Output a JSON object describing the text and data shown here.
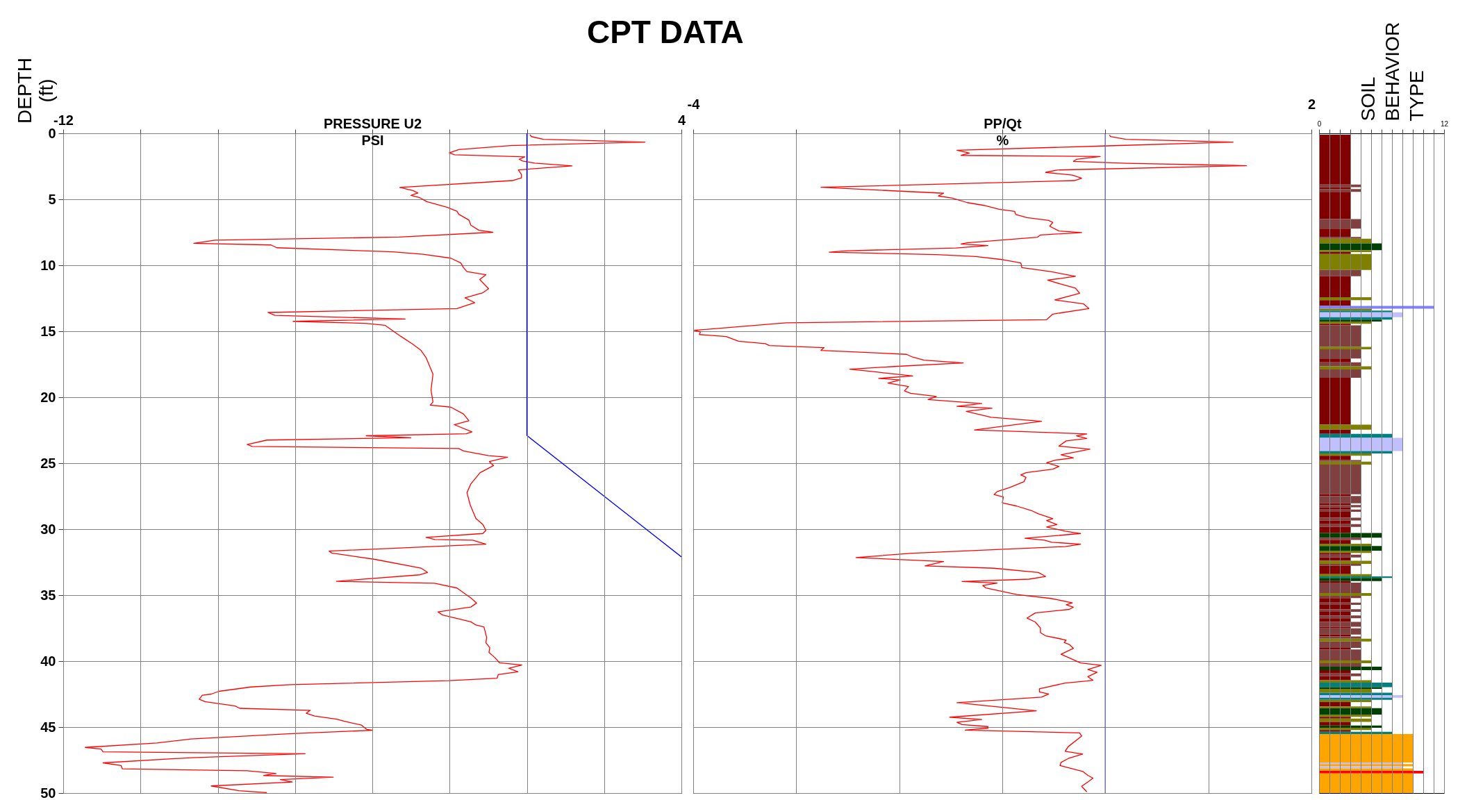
{
  "chart_data": [
    {
      "type": "line",
      "title": "CPT DATA",
      "xlabel": "PRESSURE U2\nPSI",
      "ylabel": "DEPTH\n(ft)",
      "xlim": [
        -12,
        4
      ],
      "xticks": [
        -12,
        {
          "value": -10,
          "label": null
        },
        {
          "value": -8,
          "label": null
        },
        {
          "value": -6,
          "label": null
        },
        {
          "value": -4,
          "label": null
        },
        {
          "value": -2,
          "label": null
        },
        {
          "value": 0,
          "label": null
        },
        {
          "value": 2,
          "label": null
        },
        4
      ],
      "ylim": [
        50,
        0
      ],
      "yticks": [
        0,
        5,
        10,
        15,
        20,
        25,
        30,
        35,
        40,
        45,
        50
      ],
      "grid": true,
      "series": [
        {
          "color": "#ff0000",
          "x": [
            0.08,
            0.12,
            0.43,
            3.06,
            -0.42,
            -1.76,
            -2.01,
            -1.87,
            -0.05,
            -0.2,
            -0.11,
            0.2,
            1.17,
            -0.22,
            -0.14,
            -0.14,
            -0.37,
            -3.29,
            -2.95,
            -2.82,
            -3.0,
            -2.77,
            -2.59,
            -2.07,
            -1.81,
            -1.76,
            -1.5,
            -1.45,
            -1.24,
            -0.88,
            -3.31,
            -8.07,
            -8.62,
            -6.62,
            -6.47,
            -3.47,
            -2.69,
            -1.97,
            -1.71,
            -1.64,
            -1.55,
            -1.06,
            -1.22,
            -0.99,
            -1.14,
            -1.6,
            -1.35,
            -1.81,
            -6.7,
            -6.52,
            -3.15,
            -6.05,
            -4.19,
            -3.67,
            -3.26,
            -2.95,
            -2.74,
            -2.61,
            -2.43,
            -2.48,
            -2.43,
            -2.5,
            -1.97,
            -1.64,
            -1.5,
            -1.88,
            -1.42,
            -1.57,
            -4.16,
            -3.0,
            -6.73,
            -7.24,
            -7.11,
            -1.76,
            -1.64,
            -0.99,
            -0.5,
            -0.97,
            -0.86,
            -1.21,
            -1.45,
            -1.55,
            -1.47,
            -1.32,
            -1.14,
            -1.06,
            -1.14,
            -2.61,
            -2.38,
            -1.4,
            -1.06,
            -5.12,
            -5.05,
            -3.93,
            -2.74,
            -2.57,
            -2.77,
            -4.93,
            -2.39,
            -1.81,
            -1.45,
            -1.3,
            -1.45,
            -2.3,
            -2.18,
            -1.45,
            -1.32,
            -1.11,
            -1.04,
            -1.06,
            -0.96,
            -0.98,
            -0.83,
            -0.71,
            -0.13,
            -0.47,
            -0.23,
            -0.74,
            -0.77,
            -2.02,
            -6.11,
            -7.14,
            -7.97,
            -8.17,
            -8.4,
            -8.48,
            -8.33,
            -7.55,
            -7.43,
            -5.61,
            -5.71,
            -5.49,
            -4.92,
            -4.74,
            -4.28,
            -4.14,
            -3.99,
            -6.16,
            -8.69,
            -9.57,
            -11.43,
            -11.02,
            -10.97,
            -5.74,
            -8.69,
            -10.97,
            -10.5,
            -10.47,
            -7.24,
            -6.49,
            -6.81,
            -5.01,
            -6.38,
            -6.07,
            -8.17,
            -7.45,
            -6.73
          ],
          "values": [
            0.1,
            0.25,
            0.45,
            0.66,
            0.93,
            1.23,
            1.48,
            1.63,
            1.78,
            1.96,
            2.1,
            2.26,
            2.47,
            2.77,
            3.13,
            3.37,
            3.58,
            4.1,
            4.34,
            4.52,
            4.7,
            4.88,
            5.18,
            5.6,
            5.9,
            6.14,
            6.57,
            6.96,
            7.35,
            7.5,
            7.86,
            8.1,
            8.34,
            8.46,
            8.67,
            8.98,
            9.16,
            9.46,
            9.82,
            10.18,
            10.48,
            10.72,
            11.08,
            11.78,
            12.08,
            12.47,
            12.83,
            13.28,
            13.58,
            13.8,
            14.07,
            14.25,
            14.4,
            14.55,
            15.39,
            15.99,
            16.45,
            16.99,
            18.25,
            19.46,
            20.36,
            20.6,
            20.75,
            21.27,
            21.78,
            22.08,
            22.62,
            22.77,
            22.92,
            23.07,
            23.25,
            23.58,
            23.73,
            23.89,
            24.07,
            24.43,
            24.55,
            24.88,
            25.18,
            25.72,
            26.57,
            27.23,
            28.13,
            29.19,
            29.64,
            30.09,
            30.33,
            30.63,
            30.78,
            30.84,
            31.14,
            31.66,
            31.81,
            32.29,
            32.95,
            33.28,
            33.46,
            33.95,
            34.1,
            34.46,
            35.21,
            35.6,
            35.9,
            36.27,
            36.51,
            37.02,
            37.26,
            37.41,
            38.22,
            38.61,
            38.98,
            39.34,
            39.73,
            40.12,
            40.3,
            40.54,
            40.81,
            41.02,
            41.3,
            41.48,
            41.78,
            41.96,
            42.29,
            42.5,
            42.59,
            42.89,
            43.07,
            43.4,
            43.58,
            43.73,
            43.95,
            44.16,
            44.4,
            44.55,
            44.85,
            45.18,
            45.24,
            45.51,
            45.9,
            46.2,
            46.54,
            46.66,
            46.87,
            47.02,
            47.32,
            47.71,
            47.92,
            48.16,
            48.31,
            48.52,
            48.67,
            48.8,
            48.98,
            49.16,
            49.46,
            49.82,
            49.97
          ]
        },
        {
          "color": "#0000ff",
          "x": [
            0,
            0,
            4
          ],
          "values": [
            0,
            22.9,
            32.1
          ]
        }
      ]
    },
    {
      "type": "line",
      "xlabel": "PP/Qt\n%",
      "xlim": [
        -4,
        2
      ],
      "xticks": [
        -4,
        {
          "value": -3,
          "label": null
        },
        {
          "value": -2,
          "label": null
        },
        {
          "value": -1,
          "label": null
        },
        {
          "value": 0,
          "label": null
        },
        {
          "value": 1,
          "label": null
        },
        2
      ],
      "ylim": [
        50,
        0
      ],
      "yticks": [
        0,
        5,
        10,
        15,
        20,
        25,
        30,
        35,
        40,
        45,
        50
      ],
      "grid": true,
      "tick_labels": "x",
      "ref_lines": [
        {
          "axis": "x",
          "value": 0,
          "color": "#0000ff"
        }
      ],
      "series": [
        {
          "color": "#ff0000",
          "x": [
            0.04,
            0.05,
            0.2,
            1.24,
            -0.03,
            -1.44,
            -1.32,
            -1.4,
            -0.05,
            -0.28,
            -0.31,
            0.2,
            1.37,
            -0.47,
            -0.58,
            -0.32,
            -0.23,
            -0.3,
            -2.76,
            -1.57,
            -1.62,
            -1.49,
            -1.34,
            -1.18,
            -1.03,
            -0.88,
            -0.87,
            -0.76,
            -0.55,
            -0.51,
            -0.54,
            -0.45,
            -0.23,
            -0.63,
            -0.66,
            -1.34,
            -1.4,
            -1.14,
            -1.45,
            -2.51,
            -2.68,
            -1.64,
            -1.26,
            -0.99,
            -0.82,
            -0.81,
            -0.53,
            -0.29,
            -0.56,
            -0.43,
            -0.29,
            -0.25,
            -0.49,
            -0.21,
            -0.16,
            -0.51,
            -0.57,
            -3.1,
            -3.99,
            -3.93,
            -3.94,
            -3.68,
            -3.56,
            -3.3,
            -3.26,
            -2.73,
            -2.76,
            -1.93,
            -1.87,
            -1.76,
            -1.38,
            -2.05,
            -2.48,
            -2.22,
            -1.87,
            -2.2,
            -1.99,
            -2.11,
            -1.91,
            -1.95,
            -1.89,
            -1.64,
            -1.72,
            -1.2,
            -1.44,
            -1.1,
            -1.35,
            -1.11,
            -0.62,
            -1.27,
            -0.18,
            -0.28,
            -0.18,
            -0.38,
            -0.45,
            -0.15,
            -0.43,
            -0.31,
            -0.48,
            -0.57,
            -0.45,
            -0.51,
            -0.77,
            -0.82,
            -0.77,
            -0.79,
            -0.93,
            -1.05,
            -1.08,
            -0.99,
            -1.0,
            -0.86,
            -0.72,
            -0.65,
            -0.51,
            -0.57,
            -0.47,
            -0.57,
            -0.39,
            -0.24,
            -0.78,
            -0.59,
            -0.52,
            -0.24,
            -0.39,
            -1.87,
            -2.42,
            -1.57,
            -1.75,
            -1.08,
            -0.65,
            -0.58,
            -0.74,
            -1.39,
            -1.05,
            -1.19,
            -1.16,
            -0.86,
            -0.53,
            -0.32,
            -0.38,
            -0.31,
            -0.35,
            -0.68,
            -0.76,
            -0.68,
            -0.63,
            -0.63,
            -0.58,
            -0.45,
            -0.38,
            -0.4,
            -0.35,
            -0.31,
            -0.43,
            -0.24,
            -0.04,
            -0.17,
            -0.08,
            -0.17,
            -0.12,
            -0.18,
            -0.39,
            -0.64,
            -0.64,
            -0.55,
            -0.62,
            -1.44,
            -0.67,
            -1.51,
            -1.2,
            -1.44,
            -1.39,
            -1.14,
            -1.14,
            -1.36,
            -0.25,
            -0.23,
            -0.36,
            -0.39,
            -0.22,
            -0.36,
            -0.43,
            -0.44,
            -0.22,
            -0.17,
            -0.12,
            -0.16,
            -0.23,
            -0.18
          ],
          "values": [
            0.12,
            0.24,
            0.45,
            0.66,
            0.96,
            1.28,
            1.49,
            1.67,
            1.76,
            1.97,
            2.12,
            2.27,
            2.45,
            2.78,
            2.96,
            3.16,
            3.4,
            3.58,
            4.09,
            4.54,
            4.75,
            4.9,
            5.25,
            5.46,
            5.76,
            5.91,
            6.15,
            6.39,
            6.6,
            6.75,
            7.04,
            7.4,
            7.52,
            7.7,
            7.88,
            8.3,
            8.39,
            8.51,
            8.69,
            8.9,
            9.01,
            9.19,
            9.34,
            9.58,
            9.82,
            10.18,
            10.48,
            10.84,
            11.13,
            11.43,
            11.73,
            12.12,
            12.63,
            12.93,
            13.28,
            13.7,
            14.12,
            14.36,
            14.93,
            15.04,
            15.25,
            15.4,
            15.76,
            15.94,
            16.09,
            16.24,
            16.45,
            16.75,
            16.96,
            17.19,
            17.4,
            17.67,
            17.88,
            18.09,
            18.39,
            18.57,
            18.69,
            18.93,
            19.19,
            19.52,
            19.7,
            19.94,
            20.18,
            20.48,
            20.69,
            20.84,
            21.07,
            21.52,
            21.82,
            22.48,
            22.78,
            22.93,
            23.13,
            23.31,
            23.7,
            23.94,
            24.36,
            24.6,
            24.76,
            24.97,
            25.24,
            25.45,
            25.72,
            25.89,
            26.07,
            26.4,
            26.85,
            27.15,
            27.38,
            27.56,
            28.01,
            28.25,
            28.58,
            28.84,
            29.2,
            29.35,
            29.65,
            29.83,
            30.15,
            30.33,
            30.69,
            30.84,
            30.99,
            31.14,
            31.32,
            31.82,
            32.15,
            32.45,
            32.78,
            32.96,
            33.28,
            33.58,
            33.79,
            33.97,
            34.09,
            34.27,
            34.45,
            34.95,
            35.25,
            35.58,
            35.73,
            35.91,
            36.08,
            36.35,
            36.74,
            37.04,
            37.49,
            37.84,
            38.08,
            38.29,
            38.41,
            38.59,
            38.74,
            39.03,
            39.48,
            40.14,
            40.32,
            40.64,
            40.85,
            41.18,
            41.45,
            41.51,
            41.66,
            42.1,
            42.34,
            42.49,
            42.73,
            43.15,
            43.77,
            44.25,
            44.43,
            44.64,
            44.81,
            44.96,
            45.08,
            45.23,
            45.44,
            45.68,
            46.48,
            46.84,
            47.05,
            47.38,
            47.68,
            47.91,
            48.36,
            48.66,
            48.87,
            49.11,
            49.49,
            49.91
          ]
        }
      ]
    },
    {
      "type": "histogram",
      "orientation": "horizontal",
      "title": "SOIL\nBEHAVIOR\nTYPE",
      "xlim": [
        0,
        12
      ],
      "xticks": [
        0,
        {
          "value": 1,
          "label": null
        },
        {
          "value": 2,
          "label": null
        },
        {
          "value": 3,
          "label": null
        },
        {
          "value": 4,
          "label": null
        },
        {
          "value": 5,
          "label": null
        },
        {
          "value": 6,
          "label": null
        },
        {
          "value": 7,
          "label": null
        },
        {
          "value": 8,
          "label": null
        },
        {
          "value": 9,
          "label": null
        },
        {
          "value": 10,
          "label": null
        },
        {
          "value": 11,
          "label": null
        },
        12
      ],
      "ylim": [
        50,
        0
      ],
      "yticks": [
        0,
        5,
        10,
        15,
        20,
        25,
        30,
        35,
        40,
        45,
        50
      ],
      "grid": "x",
      "tick_labels": "x",
      "bins": [
        0.1,
        3.88,
        4.08,
        4.22,
        4.43,
        6.5,
        7.23,
        7.85,
        7.99,
        8.34,
        8.86,
        9.0,
        9.15,
        10.35,
        10.83,
        12.42,
        12.65,
        13.08,
        13.29,
        13.43,
        13.56,
        13.94,
        14.12,
        14.26,
        14.43,
        14.55,
        16.19,
        16.37,
        17.06,
        17.35,
        17.66,
        17.89,
        18.53,
        22.08,
        22.46,
        22.77,
        23.08,
        24.08,
        24.26,
        24.43,
        24.76,
        24.88,
        25.1,
        27.35,
        27.49,
        28.04,
        28.17,
        28.34,
        28.51,
        28.69,
        29.13,
        29.34,
        29.62,
        29.83,
        30.29,
        30.64,
        30.81,
        31.1,
        31.28,
        31.63,
        31.8,
        31.94,
        32.15,
        32.4,
        32.63,
        32.77,
        33.41,
        33.58,
        33.7,
        33.93,
        34.05,
        34.84,
        35.05,
        35.22,
        35.57,
        35.74,
        36.06,
        36.26,
        36.54,
        36.75,
        37.02,
        37.39,
        37.51,
        37.99,
        38.13,
        38.3,
        38.51,
        39.0,
        39.12,
        39.95,
        40.16,
        40.42,
        40.68,
        40.93,
        41.14,
        41.45,
        41.63,
        41.97,
        42.11,
        42.4,
        42.58,
        42.77,
        42.94,
        43.11,
        43.44,
        43.56,
        44.05,
        44.22,
        44.36,
        44.6,
        44.88,
        45.05,
        45.22,
        45.36,
        45.52,
        47.68,
        47.8,
        47.98,
        48.13,
        48.32,
        48.51,
        50
      ],
      "values": [
        3,
        4,
        3,
        4,
        3,
        4,
        3,
        4,
        5,
        6,
        5,
        3,
        5,
        4,
        3,
        5,
        3,
        11,
        5,
        7,
        8,
        7,
        6,
        5,
        3,
        4,
        5,
        4,
        3,
        4,
        5,
        4,
        3,
        5,
        3,
        7,
        8,
        7,
        5,
        3,
        4,
        5,
        4,
        3,
        4,
        3,
        4,
        3,
        4,
        3,
        4,
        3,
        4,
        3,
        6,
        4,
        3,
        5,
        6,
        5,
        3,
        4,
        3,
        5,
        4,
        3,
        5,
        7,
        6,
        3,
        4,
        5,
        4,
        3,
        4,
        3,
        4,
        3,
        4,
        3,
        4,
        3,
        4,
        3,
        4,
        5,
        4,
        3,
        4,
        5,
        4,
        6,
        3,
        4,
        3,
        5,
        7,
        6,
        5,
        7,
        8,
        7,
        5,
        3,
        5,
        6,
        5,
        3,
        5,
        3,
        6,
        5,
        3,
        7,
        9,
        8,
        9,
        8,
        9,
        10,
        9
      ],
      "colors": [
        "#800000",
        "#804040",
        "#800000",
        "#804040",
        "#800000",
        "#804040",
        "#800000",
        "#804040",
        "#808000",
        "#004000",
        "#808000",
        "#800000",
        "#808000",
        "#804040",
        "#800000",
        "#808000",
        "#800000",
        "#8080ff",
        "#808000",
        "#008080",
        "#c0c0ff",
        "#008080",
        "#004000",
        "#808000",
        "#800000",
        "#804040",
        "#808000",
        "#804040",
        "#800000",
        "#804040",
        "#808000",
        "#804040",
        "#800000",
        "#808000",
        "#800000",
        "#008080",
        "#c0c0ff",
        "#008080",
        "#808000",
        "#800000",
        "#804040",
        "#808000",
        "#804040",
        "#800000",
        "#804040",
        "#800000",
        "#804040",
        "#800000",
        "#804040",
        "#800000",
        "#804040",
        "#800000",
        "#804040",
        "#800000",
        "#004000",
        "#804040",
        "#800000",
        "#808000",
        "#004000",
        "#808000",
        "#800000",
        "#804040",
        "#800000",
        "#808000",
        "#804040",
        "#800000",
        "#808000",
        "#008080",
        "#004000",
        "#800000",
        "#804040",
        "#808000",
        "#804040",
        "#800000",
        "#804040",
        "#800000",
        "#804040",
        "#800000",
        "#804040",
        "#800000",
        "#804040",
        "#800000",
        "#804040",
        "#800000",
        "#804040",
        "#808000",
        "#804040",
        "#800000",
        "#804040",
        "#808000",
        "#804040",
        "#004000",
        "#800000",
        "#804040",
        "#800000",
        "#808000",
        "#008080",
        "#004000",
        "#808000",
        "#008080",
        "#c0c0ff",
        "#008080",
        "#808000",
        "#800000",
        "#808000",
        "#004000",
        "#808000",
        "#800000",
        "#808000",
        "#800000",
        "#004000",
        "#808000",
        "#800000",
        "#008080",
        "#ffa500",
        "#c0c0ff",
        "#ffa500",
        "#c0c0ff",
        "#ffa500",
        "#ff0000",
        "#ffa500"
      ]
    }
  ]
}
